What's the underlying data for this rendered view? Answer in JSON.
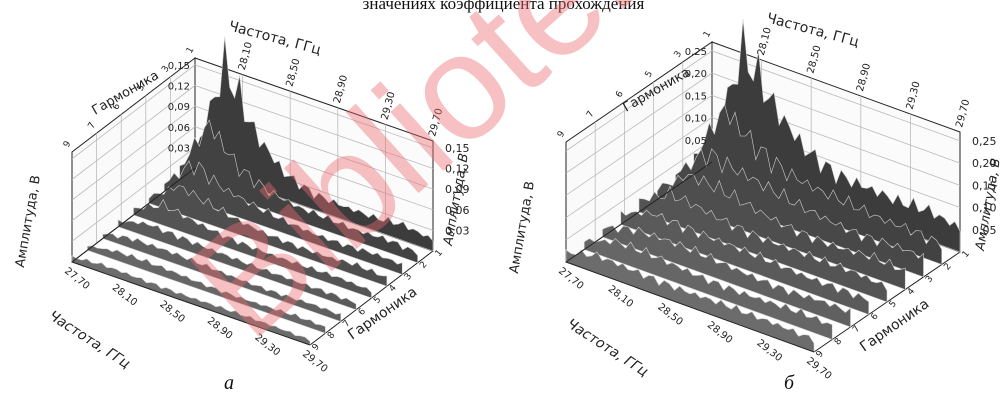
{
  "figure": {
    "caption_fragment": "значениях коэффициента прохождения",
    "watermark": "Biblioteka"
  },
  "chart_data": [
    {
      "type": "surface",
      "panel_label": "а",
      "title": "",
      "x_axis": {
        "label": "Частота, ГГц",
        "ticks": [
          "27,70",
          "28,10",
          "28,50",
          "28,90",
          "29,30",
          "29,70"
        ],
        "range": [
          27.7,
          29.7
        ]
      },
      "x_axis_back": {
        "label": "Частота, ГГц",
        "ticks": [
          "28,10",
          "28,50",
          "28,90",
          "29,30",
          "29,70"
        ]
      },
      "y_axis": {
        "label": "Гармоника",
        "ticks": [
          "1",
          "2",
          "3",
          "4",
          "5",
          "6",
          "7",
          "8",
          "9"
        ],
        "range": [
          1,
          9
        ]
      },
      "y_axis_back": {
        "label": "Гармоника",
        "ticks": [
          "1",
          "3",
          "5",
          "6",
          "7",
          "9"
        ]
      },
      "z_axis": {
        "label": "Амплитуда, В",
        "ticks": [
          "0,03",
          "0,06",
          "0,09",
          "0,12",
          "0,15"
        ],
        "range": [
          0,
          0.16
        ]
      },
      "z_axis_right": {
        "label": "Амплитуда, В",
        "ticks": [
          "0,03",
          "0,06",
          "0,09",
          "0,12",
          "0,15"
        ]
      },
      "peak": {
        "frequency": 28.1,
        "harmonic": 1,
        "amplitude": 0.155
      },
      "surface_rows": [
        {
          "harmonic": 1,
          "amplitudes": [
            0.02,
            0.155,
            0.08,
            0.04,
            0.025,
            0.02,
            0.018,
            0.022,
            0.017
          ]
        },
        {
          "harmonic": 2,
          "amplitudes": [
            0.015,
            0.095,
            0.05,
            0.03,
            0.02,
            0.018,
            0.016,
            0.02,
            0.015
          ]
        },
        {
          "harmonic": 3,
          "amplitudes": [
            0.012,
            0.06,
            0.035,
            0.024,
            0.018,
            0.015,
            0.015,
            0.017,
            0.014
          ]
        },
        {
          "harmonic": 4,
          "amplitudes": [
            0.01,
            0.04,
            0.028,
            0.02,
            0.016,
            0.014,
            0.013,
            0.015,
            0.012
          ]
        },
        {
          "harmonic": 5,
          "amplitudes": [
            0.009,
            0.028,
            0.022,
            0.017,
            0.014,
            0.012,
            0.012,
            0.013,
            0.011
          ]
        },
        {
          "harmonic": 6,
          "amplitudes": [
            0.008,
            0.02,
            0.018,
            0.015,
            0.012,
            0.011,
            0.011,
            0.012,
            0.01
          ]
        },
        {
          "harmonic": 7,
          "amplitudes": [
            0.008,
            0.016,
            0.015,
            0.013,
            0.011,
            0.01,
            0.01,
            0.011,
            0.009
          ]
        },
        {
          "harmonic": 8,
          "amplitudes": [
            0.007,
            0.013,
            0.013,
            0.012,
            0.01,
            0.009,
            0.009,
            0.01,
            0.009
          ]
        },
        {
          "harmonic": 9,
          "amplitudes": [
            0.007,
            0.011,
            0.011,
            0.01,
            0.009,
            0.009,
            0.009,
            0.009,
            0.008
          ]
        }
      ]
    },
    {
      "type": "surface",
      "panel_label": "б",
      "title": "",
      "x_axis": {
        "label": "Частота, ГГц",
        "ticks": [
          "27,70",
          "28,10",
          "28,50",
          "28,90",
          "29,30",
          "29,70"
        ],
        "range": [
          27.7,
          29.7
        ]
      },
      "x_axis_back": {
        "label": "Частота, ГГц",
        "ticks": [
          "28,10",
          "28,50",
          "28,90",
          "29,30",
          "29,70"
        ]
      },
      "y_axis": {
        "label": "Гармоника",
        "ticks": [
          "1",
          "2",
          "3",
          "4",
          "5",
          "6",
          "7",
          "8",
          "9"
        ],
        "range": [
          1,
          9
        ]
      },
      "y_axis_back": {
        "label": "Гармоника",
        "ticks": [
          "1",
          "3",
          "5",
          "6",
          "7",
          "9"
        ]
      },
      "z_axis": {
        "label": "Амплитуда, В",
        "ticks": [
          "0,05",
          "0,10",
          "0,15",
          "0,20",
          "0,25"
        ],
        "range": [
          0,
          0.27
        ]
      },
      "z_axis_right": {
        "label": "Амплитуда, В",
        "ticks": [
          "0,05",
          "0,10",
          "0,15",
          "0,20",
          "0,25"
        ]
      },
      "peak": {
        "frequency": 28.1,
        "harmonic": 1,
        "amplitude": 0.26
      },
      "surface_rows": [
        {
          "harmonic": 1,
          "amplitudes": [
            0.04,
            0.26,
            0.17,
            0.11,
            0.08,
            0.07,
            0.06,
            0.065,
            0.055
          ]
        },
        {
          "harmonic": 2,
          "amplitudes": [
            0.035,
            0.17,
            0.12,
            0.085,
            0.065,
            0.058,
            0.052,
            0.056,
            0.048
          ]
        },
        {
          "harmonic": 3,
          "amplitudes": [
            0.03,
            0.11,
            0.09,
            0.07,
            0.056,
            0.05,
            0.046,
            0.049,
            0.043
          ]
        },
        {
          "harmonic": 4,
          "amplitudes": [
            0.028,
            0.08,
            0.07,
            0.058,
            0.049,
            0.044,
            0.041,
            0.044,
            0.039
          ]
        },
        {
          "harmonic": 5,
          "amplitudes": [
            0.026,
            0.062,
            0.058,
            0.05,
            0.044,
            0.04,
            0.038,
            0.04,
            0.036
          ]
        },
        {
          "harmonic": 6,
          "amplitudes": [
            0.024,
            0.052,
            0.05,
            0.045,
            0.04,
            0.037,
            0.035,
            0.037,
            0.034
          ]
        },
        {
          "harmonic": 7,
          "amplitudes": [
            0.023,
            0.046,
            0.045,
            0.041,
            0.037,
            0.035,
            0.033,
            0.035,
            0.032
          ]
        },
        {
          "harmonic": 8,
          "amplitudes": [
            0.022,
            0.042,
            0.041,
            0.038,
            0.035,
            0.033,
            0.032,
            0.033,
            0.031
          ]
        },
        {
          "harmonic": 9,
          "amplitudes": [
            0.021,
            0.038,
            0.038,
            0.036,
            0.033,
            0.032,
            0.031,
            0.032,
            0.03
          ]
        }
      ]
    }
  ]
}
